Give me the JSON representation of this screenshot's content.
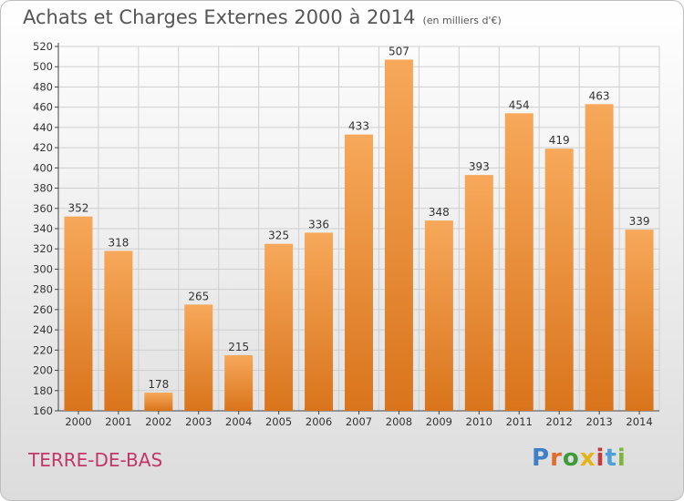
{
  "header": {
    "title": "Achats et Charges Externes 2000 à 2014",
    "unit": "(en milliers d'€)"
  },
  "footer": {
    "town": "TERRE-DE-BAS",
    "brand": [
      "P",
      "r",
      "o",
      "x",
      "i",
      "t",
      "i"
    ]
  },
  "colors": {
    "bar_light": "#f7a85a",
    "bar_dark": "#d9741b",
    "grid": "#cfcfcf"
  },
  "chart_data": {
    "type": "bar",
    "title": "Achats et Charges Externes 2000 à 2014",
    "subtitle": "(en milliers d'€)",
    "categories": [
      "2000",
      "2001",
      "2002",
      "2003",
      "2004",
      "2005",
      "2006",
      "2007",
      "2008",
      "2009",
      "2010",
      "2011",
      "2012",
      "2013",
      "2014"
    ],
    "values": [
      352,
      318,
      178,
      265,
      215,
      325,
      336,
      433,
      507,
      348,
      393,
      454,
      419,
      463,
      339
    ],
    "ylim": [
      160,
      520
    ],
    "ytick_step": 20,
    "grid": true
  }
}
